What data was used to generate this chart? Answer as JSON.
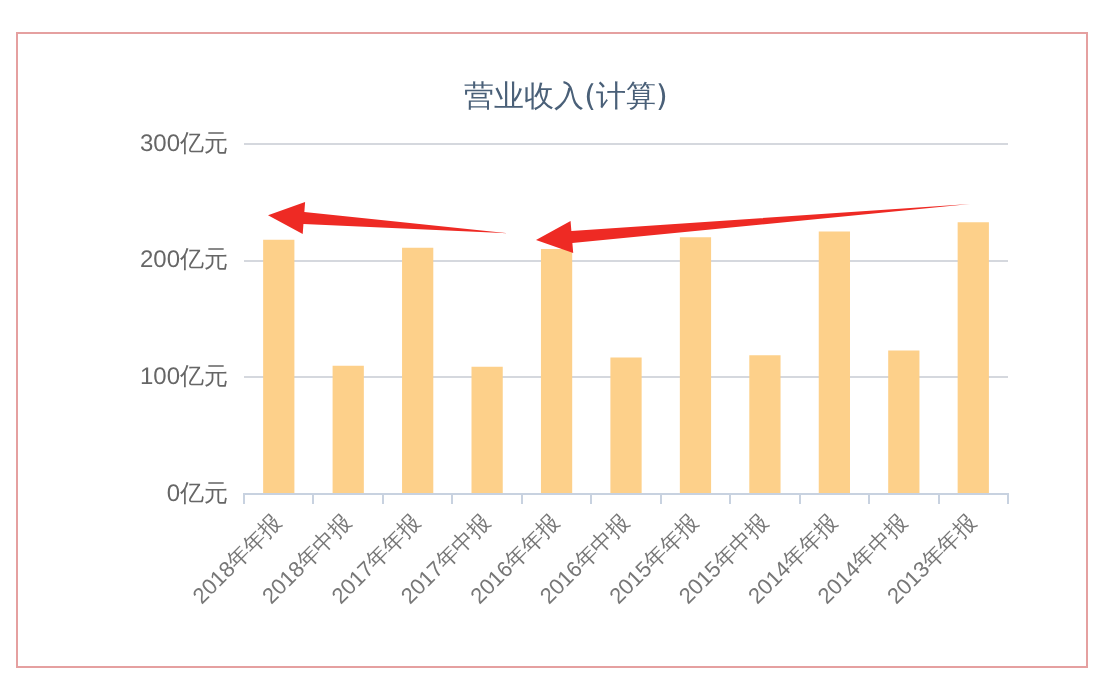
{
  "chart_data": {
    "type": "bar",
    "title": "营业收入(计算)",
    "categories": [
      "2018年年报",
      "2018年中报",
      "2017年年报",
      "2017年中报",
      "2016年年报",
      "2016年中报",
      "2015年年报",
      "2015年中报",
      "2014年年报",
      "2014年中报",
      "2013年年报"
    ],
    "values": [
      218,
      110,
      211,
      109,
      210,
      117,
      220,
      119,
      225,
      123,
      233
    ],
    "color": "#fdd08a",
    "ylim": [
      0,
      300
    ],
    "yticks": [
      {
        "value": 0,
        "label": "0亿元"
      },
      {
        "value": 100,
        "label": "100亿元"
      },
      {
        "value": 200,
        "label": "200亿元"
      },
      {
        "value": 300,
        "label": "300亿元"
      }
    ],
    "grid": "y"
  }
}
